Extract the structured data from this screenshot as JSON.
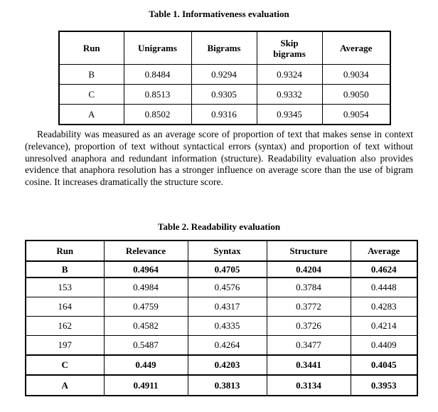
{
  "table1": {
    "title": "Table 1. Informativeness evaluation",
    "columns": [
      "Run",
      "Unigrams",
      "Bigrams",
      "Skip\nbigrams",
      "Average"
    ],
    "rows": [
      {
        "run": "B",
        "values": [
          "0.8484",
          "0.9294",
          "0.9324",
          "0.9034"
        ],
        "bold": false
      },
      {
        "run": "C",
        "values": [
          "0.8513",
          "0.9305",
          "0.9332",
          "0.9050"
        ],
        "bold": false
      },
      {
        "run": "A",
        "values": [
          "0.8502",
          "0.9316",
          "0.9345",
          "0.9054"
        ],
        "bold": false
      }
    ]
  },
  "paragraph": "Readability was measured as an average score of proportion of text that makes sense in context (relevance), proportion of text without syntactical errors (syntax) and proportion of text without unresolved anaphora and redundant information (structure). Readability evaluation also provides evidence that anaphora resolution has a stronger influence on average score than the use of bigram cosine. It increases dramatically the structure score.",
  "table2": {
    "title": "Table 2. Readability evaluation",
    "columns": [
      "Run",
      "Relevance",
      "Syntax",
      "Structure",
      "Average"
    ],
    "rows": [
      {
        "run": "B",
        "values": [
          "0.4964",
          "0.4705",
          "0.4204",
          "0.4624"
        ],
        "bold": true
      },
      {
        "run": "153",
        "values": [
          "0.4984",
          "0.4576",
          "0.3784",
          "0.4448"
        ],
        "bold": false
      },
      {
        "run": "164",
        "values": [
          "0.4759",
          "0.4317",
          "0.3772",
          "0.4283"
        ],
        "bold": false
      },
      {
        "run": "162",
        "values": [
          "0.4582",
          "0.4335",
          "0.3726",
          "0.4214"
        ],
        "bold": false
      },
      {
        "run": "197",
        "values": [
          "0.5487",
          "0.4264",
          "0.3477",
          "0.4409"
        ],
        "bold": false
      },
      {
        "run": "C",
        "values": [
          "0.449",
          "0.4203",
          "0.3441",
          "0.4045"
        ],
        "bold": true
      },
      {
        "run": "A",
        "values": [
          "0.4911",
          "0.3813",
          "0.3134",
          "0.3953"
        ],
        "bold": true
      }
    ]
  }
}
